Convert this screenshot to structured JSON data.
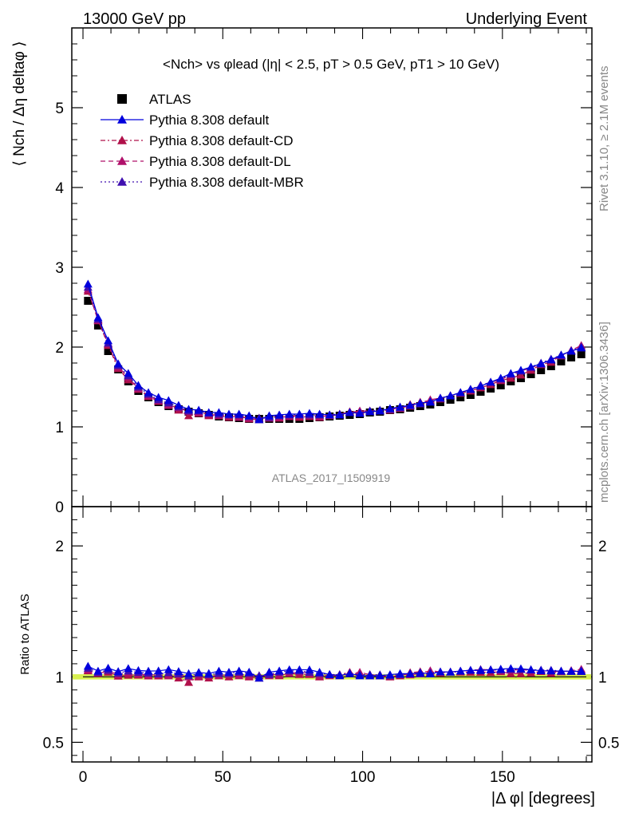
{
  "header": {
    "left": "13000 GeV pp",
    "right": "Underlying Event"
  },
  "side_labels": {
    "rivet": "Rivet 3.1.10, ≥ 2.1M events",
    "mcplots": "mcplots.cern.ch [arXiv:1306.3436]"
  },
  "colors": {
    "atlas": "#000000",
    "default": "#0000dd",
    "cd": "#b0104a",
    "dl": "#b0106a",
    "mbr": "#4010b0",
    "band": "#d8f050"
  },
  "chart_data": [
    {
      "type": "scatter",
      "title": "<Nch> vs φlead (|η| < 2.5, pT > 0.5 GeV, pT1 > 10 GeV)",
      "ylabel": "⟨ Nch / Δη deltaφ ⟩",
      "xlabel": "",
      "xlim": [
        -4,
        182
      ],
      "ylim": [
        0,
        6
      ],
      "yticks": [
        0,
        1,
        2,
        3,
        4,
        5
      ],
      "xticks": [
        0,
        50,
        100,
        150
      ],
      "grid": false,
      "legend_position": "top-left",
      "analysis_label": "ATLAS_2017_I1509919",
      "series": [
        {
          "name": "ATLAS",
          "marker": "square",
          "line": "none",
          "color": "#000000",
          "x": [
            1.8,
            5.4,
            9.0,
            12.6,
            16.2,
            19.8,
            23.4,
            27.0,
            30.6,
            34.2,
            37.8,
            41.4,
            45.0,
            48.6,
            52.2,
            55.8,
            59.4,
            63.0,
            66.6,
            70.2,
            73.8,
            77.4,
            81.0,
            84.6,
            88.2,
            91.8,
            95.4,
            99.0,
            102.6,
            106.2,
            109.8,
            113.4,
            117.0,
            120.6,
            124.2,
            127.8,
            131.4,
            135.0,
            138.6,
            142.2,
            145.8,
            149.4,
            153.0,
            156.6,
            160.2,
            163.8,
            167.4,
            171.0,
            174.6,
            178.2
          ],
          "y": [
            2.58,
            2.27,
            1.95,
            1.72,
            1.57,
            1.45,
            1.37,
            1.31,
            1.26,
            1.22,
            1.19,
            1.17,
            1.15,
            1.13,
            1.12,
            1.11,
            1.1,
            1.1,
            1.1,
            1.1,
            1.1,
            1.1,
            1.11,
            1.12,
            1.13,
            1.14,
            1.15,
            1.16,
            1.18,
            1.19,
            1.21,
            1.22,
            1.24,
            1.26,
            1.28,
            1.31,
            1.34,
            1.37,
            1.4,
            1.44,
            1.48,
            1.52,
            1.57,
            1.61,
            1.66,
            1.71,
            1.76,
            1.82,
            1.87,
            1.91
          ]
        },
        {
          "name": "Pythia 8.308 default",
          "marker": "triangle",
          "line": "solid",
          "color": "#0000dd",
          "x": [
            1.8,
            5.4,
            9.0,
            12.6,
            16.2,
            19.8,
            23.4,
            27.0,
            30.6,
            34.2,
            37.8,
            41.4,
            45.0,
            48.6,
            52.2,
            55.8,
            59.4,
            63.0,
            66.6,
            70.2,
            73.8,
            77.4,
            81.0,
            84.6,
            88.2,
            91.8,
            95.4,
            99.0,
            102.6,
            106.2,
            109.8,
            113.4,
            117.0,
            120.6,
            124.2,
            127.8,
            131.4,
            135.0,
            138.6,
            142.2,
            145.8,
            149.4,
            153.0,
            156.6,
            160.2,
            163.8,
            167.4,
            171.0,
            174.6,
            178.2
          ],
          "y": [
            2.79,
            2.37,
            2.08,
            1.79,
            1.67,
            1.52,
            1.43,
            1.37,
            1.33,
            1.27,
            1.22,
            1.21,
            1.18,
            1.18,
            1.16,
            1.16,
            1.14,
            1.09,
            1.14,
            1.15,
            1.16,
            1.16,
            1.17,
            1.16,
            1.15,
            1.15,
            1.18,
            1.17,
            1.19,
            1.2,
            1.23,
            1.25,
            1.27,
            1.3,
            1.31,
            1.36,
            1.39,
            1.43,
            1.47,
            1.51,
            1.56,
            1.61,
            1.67,
            1.71,
            1.75,
            1.79,
            1.84,
            1.9,
            1.95,
            1.99
          ]
        },
        {
          "name": "Pythia 8.308 default-CD",
          "marker": "triangle",
          "line": "dashdot",
          "color": "#b0104a",
          "x": [
            1.8,
            5.4,
            9.0,
            12.6,
            16.2,
            19.8,
            23.4,
            27.0,
            30.6,
            34.2,
            37.8,
            41.4,
            45.0,
            48.6,
            52.2,
            55.8,
            59.4,
            63.0,
            66.6,
            70.2,
            73.8,
            77.4,
            81.0,
            84.6,
            88.2,
            91.8,
            95.4,
            99.0,
            102.6,
            106.2,
            109.8,
            113.4,
            117.0,
            120.6,
            124.2,
            127.8,
            131.4,
            135.0,
            138.6,
            142.2,
            145.8,
            149.4,
            153.0,
            156.6,
            160.2,
            163.8,
            167.4,
            171.0,
            174.6,
            178.2
          ],
          "y": [
            2.7,
            2.34,
            2.02,
            1.73,
            1.59,
            1.47,
            1.38,
            1.32,
            1.28,
            1.21,
            1.14,
            1.17,
            1.14,
            1.14,
            1.12,
            1.14,
            1.1,
            1.09,
            1.13,
            1.11,
            1.13,
            1.12,
            1.13,
            1.12,
            1.15,
            1.16,
            1.19,
            1.18,
            1.19,
            1.2,
            1.21,
            1.23,
            1.28,
            1.31,
            1.33,
            1.35,
            1.39,
            1.42,
            1.45,
            1.49,
            1.53,
            1.58,
            1.61,
            1.65,
            1.71,
            1.78,
            1.81,
            1.9,
            1.95,
            1.99
          ]
        },
        {
          "name": "Pythia 8.308 default-DL",
          "marker": "triangle",
          "line": "dashed",
          "color": "#b0106a",
          "x": [
            1.8,
            5.4,
            9.0,
            12.6,
            16.2,
            19.8,
            23.4,
            27.0,
            30.6,
            34.2,
            37.8,
            41.4,
            45.0,
            48.6,
            52.2,
            55.8,
            59.4,
            63.0,
            66.6,
            70.2,
            73.8,
            77.4,
            81.0,
            84.6,
            88.2,
            91.8,
            95.4,
            99.0,
            102.6,
            106.2,
            109.8,
            113.4,
            117.0,
            120.6,
            124.2,
            127.8,
            131.4,
            135.0,
            138.6,
            142.2,
            145.8,
            149.4,
            153.0,
            156.6,
            160.2,
            163.8,
            167.4,
            171.0,
            174.6,
            178.2
          ],
          "y": [
            2.72,
            2.33,
            2.04,
            1.75,
            1.62,
            1.48,
            1.39,
            1.33,
            1.27,
            1.24,
            1.19,
            1.18,
            1.16,
            1.14,
            1.14,
            1.12,
            1.11,
            1.11,
            1.11,
            1.12,
            1.13,
            1.14,
            1.14,
            1.13,
            1.14,
            1.15,
            1.18,
            1.2,
            1.2,
            1.2,
            1.22,
            1.24,
            1.26,
            1.29,
            1.34,
            1.36,
            1.39,
            1.43,
            1.47,
            1.52,
            1.56,
            1.59,
            1.65,
            1.7,
            1.74,
            1.79,
            1.84,
            1.89,
            1.96,
            2.02
          ]
        },
        {
          "name": "Pythia 8.308 default-MBR",
          "marker": "triangle",
          "line": "dotted",
          "color": "#4010b0",
          "x": [
            1.8,
            5.4,
            9.0,
            12.6,
            16.2,
            19.8,
            23.4,
            27.0,
            30.6,
            34.2,
            37.8,
            41.4,
            45.0,
            48.6,
            52.2,
            55.8,
            59.4,
            63.0,
            66.6,
            70.2,
            73.8,
            77.4,
            81.0,
            84.6,
            88.2,
            91.8,
            95.4,
            99.0,
            102.6,
            106.2,
            109.8,
            113.4,
            117.0,
            120.6,
            124.2,
            127.8,
            131.4,
            135.0,
            138.6,
            142.2,
            145.8,
            149.4,
            153.0,
            156.6,
            160.2,
            163.8,
            167.4,
            171.0,
            174.6,
            178.2
          ],
          "y": [
            2.75,
            2.35,
            2.05,
            1.77,
            1.64,
            1.5,
            1.41,
            1.34,
            1.3,
            1.25,
            1.2,
            1.2,
            1.17,
            1.16,
            1.15,
            1.15,
            1.13,
            1.11,
            1.12,
            1.14,
            1.15,
            1.15,
            1.15,
            1.15,
            1.15,
            1.16,
            1.18,
            1.18,
            1.2,
            1.21,
            1.22,
            1.24,
            1.27,
            1.29,
            1.32,
            1.36,
            1.39,
            1.43,
            1.47,
            1.52,
            1.56,
            1.6,
            1.66,
            1.7,
            1.75,
            1.8,
            1.85,
            1.9,
            1.95,
            2.0
          ]
        }
      ]
    },
    {
      "type": "scatter",
      "title": "",
      "ylabel": "Ratio to ATLAS",
      "xlabel": "|Δ φ| [degrees]",
      "xlim": [
        -4,
        182
      ],
      "ylim": [
        0.35,
        2.3
      ],
      "yticks": [
        0.5,
        1,
        2
      ],
      "xticks": [
        0,
        50,
        100,
        150
      ],
      "reference_band": [
        0.98,
        1.02
      ],
      "grid": false
    }
  ]
}
